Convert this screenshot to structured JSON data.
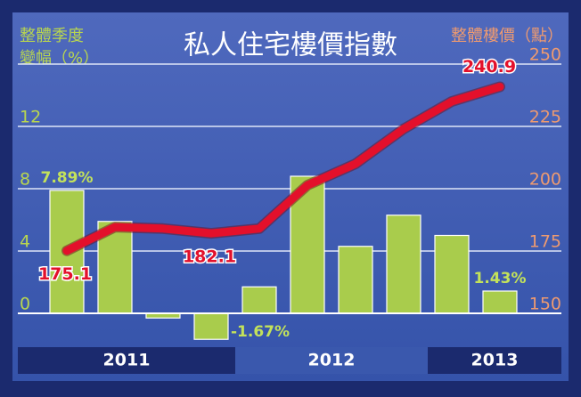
{
  "chart_data": {
    "type": "bar-line",
    "title": "私人住宅樓價指數",
    "y_label": [
      "整體季度",
      "變幅（%）"
    ],
    "y2_label": "整體樓價（點）",
    "groups": [
      {
        "label": "2011",
        "categories": [
          null,
          null,
          null,
          null
        ]
      },
      {
        "label": "2012",
        "categories": [
          null,
          null,
          null,
          null
        ]
      },
      {
        "label": "2013",
        "categories": [
          null,
          null
        ]
      }
    ],
    "ylim": [
      -2,
      16
    ],
    "yticks": [
      0,
      4,
      8,
      12
    ],
    "y2lim": [
      137.5,
      250
    ],
    "y2ticks": [
      150,
      175,
      200,
      225,
      250
    ],
    "grid": true,
    "series": [
      {
        "name": "整體季度變幅",
        "kind": "bar",
        "color": "#a9cc4c",
        "values": [
          7.89,
          5.9,
          -0.3,
          -1.67,
          1.7,
          8.8,
          4.3,
          6.3,
          5.0,
          1.43
        ],
        "value_labels": [
          "7.89%",
          null,
          null,
          "-1.67%",
          null,
          null,
          null,
          null,
          null,
          "1.43%"
        ]
      },
      {
        "name": "整體樓價",
        "kind": "line",
        "axis": "y2",
        "color": "#e3102b",
        "values": [
          175.1,
          184.6,
          184.0,
          182.1,
          184.0,
          201.4,
          210.0,
          224.0,
          235.0,
          240.9
        ],
        "value_labels": [
          "175.1",
          null,
          null,
          "182.1",
          null,
          null,
          null,
          null,
          null,
          "240.9"
        ]
      }
    ]
  }
}
